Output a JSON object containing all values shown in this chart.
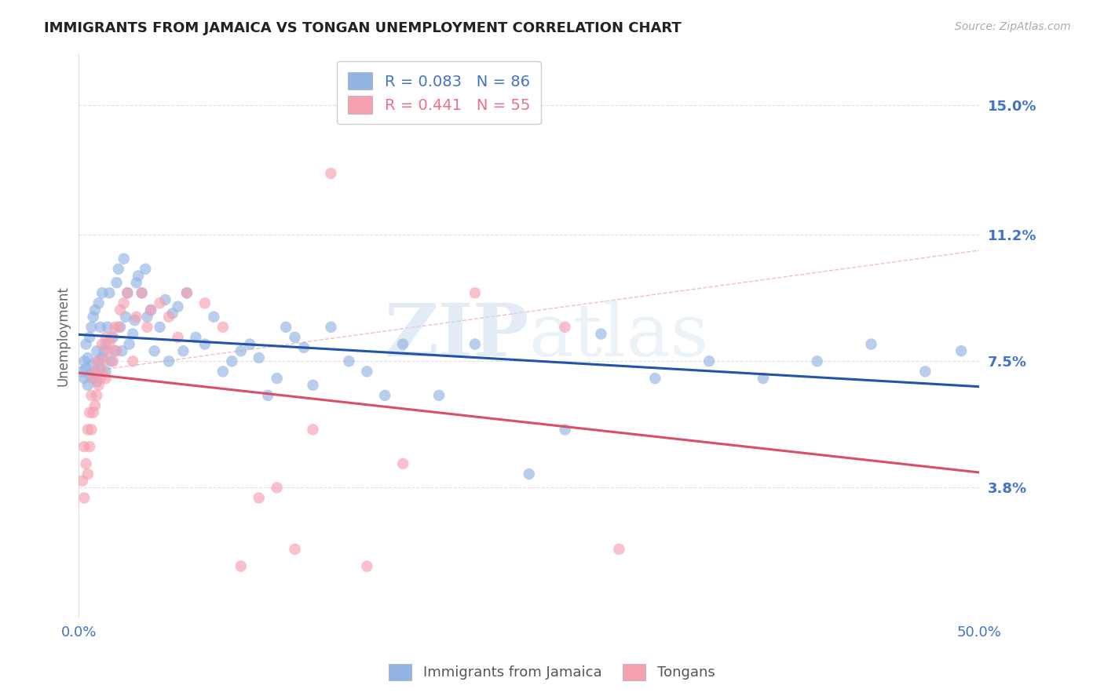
{
  "title": "IMMIGRANTS FROM JAMAICA VS TONGAN UNEMPLOYMENT CORRELATION CHART",
  "source": "Source: ZipAtlas.com",
  "ylabel": "Unemployment",
  "ytick_labels": [
    "3.8%",
    "7.5%",
    "11.2%",
    "15.0%"
  ],
  "ytick_values": [
    3.8,
    7.5,
    11.2,
    15.0
  ],
  "xlim": [
    0.0,
    50.0
  ],
  "ylim": [
    0.0,
    16.5
  ],
  "legend_label1": "Immigrants from Jamaica",
  "legend_label2": "Tongans",
  "color_blue": "#92b4e3",
  "color_pink": "#f5a0b0",
  "color_blue_text": "#4472c4",
  "color_pink_text": "#e8728a",
  "color_trendline_blue": "#2255aa",
  "color_trendline_pink": "#d94f6a",
  "color_dashed": "#e8b0bb",
  "watermark_zip": "ZIP",
  "watermark_atlas": "atlas",
  "jamaica_R": 0.083,
  "jamaica_N": 86,
  "tongan_R": 0.441,
  "tongan_N": 55,
  "background_color": "#ffffff",
  "grid_color": "#e0e0e0",
  "jamaica_x": [
    0.2,
    0.3,
    0.3,
    0.4,
    0.4,
    0.5,
    0.5,
    0.6,
    0.6,
    0.7,
    0.7,
    0.8,
    0.8,
    0.9,
    0.9,
    1.0,
    1.0,
    1.1,
    1.1,
    1.2,
    1.2,
    1.3,
    1.3,
    1.4,
    1.5,
    1.5,
    1.6,
    1.7,
    1.8,
    1.9,
    2.0,
    2.1,
    2.2,
    2.3,
    2.4,
    2.5,
    2.6,
    2.7,
    2.8,
    3.0,
    3.1,
    3.2,
    3.3,
    3.5,
    3.7,
    3.8,
    4.0,
    4.2,
    4.5,
    4.8,
    5.0,
    5.2,
    5.5,
    5.8,
    6.0,
    6.5,
    7.0,
    7.5,
    8.0,
    8.5,
    9.0,
    9.5,
    10.0,
    10.5,
    11.0,
    11.5,
    12.0,
    12.5,
    13.0,
    14.0,
    15.0,
    16.0,
    17.0,
    18.0,
    20.0,
    22.0,
    25.0,
    27.0,
    29.0,
    32.0,
    35.0,
    38.0,
    41.0,
    44.0,
    47.0,
    49.0
  ],
  "jamaica_y": [
    7.2,
    7.0,
    7.5,
    7.3,
    8.0,
    6.8,
    7.6,
    7.1,
    8.2,
    7.4,
    8.5,
    7.0,
    8.8,
    7.2,
    9.0,
    6.9,
    7.8,
    7.5,
    9.2,
    7.3,
    8.5,
    7.6,
    9.5,
    7.8,
    7.2,
    8.0,
    8.5,
    9.5,
    7.5,
    8.2,
    7.8,
    9.8,
    10.2,
    8.5,
    7.8,
    10.5,
    8.8,
    9.5,
    8.0,
    8.3,
    8.7,
    9.8,
    10.0,
    9.5,
    10.2,
    8.8,
    9.0,
    7.8,
    8.5,
    9.3,
    7.5,
    8.9,
    9.1,
    7.8,
    9.5,
    8.2,
    8.0,
    8.8,
    7.2,
    7.5,
    7.8,
    8.0,
    7.6,
    6.5,
    7.0,
    8.5,
    8.2,
    7.9,
    6.8,
    8.5,
    7.5,
    7.2,
    6.5,
    8.0,
    6.5,
    8.0,
    4.2,
    5.5,
    8.3,
    7.0,
    7.5,
    7.0,
    7.5,
    8.0,
    7.2,
    7.8
  ],
  "tongan_x": [
    0.2,
    0.3,
    0.3,
    0.4,
    0.5,
    0.5,
    0.6,
    0.6,
    0.7,
    0.7,
    0.8,
    0.8,
    0.9,
    0.9,
    1.0,
    1.0,
    1.1,
    1.2,
    1.3,
    1.3,
    1.4,
    1.5,
    1.5,
    1.6,
    1.7,
    1.8,
    1.9,
    2.0,
    2.1,
    2.2,
    2.3,
    2.5,
    2.7,
    3.0,
    3.2,
    3.5,
    3.8,
    4.0,
    4.5,
    5.0,
    5.5,
    6.0,
    7.0,
    8.0,
    9.0,
    10.0,
    11.0,
    12.0,
    13.0,
    14.0,
    16.0,
    18.0,
    22.0,
    27.0,
    30.0
  ],
  "tongan_y": [
    4.0,
    3.5,
    5.0,
    4.5,
    4.2,
    5.5,
    5.0,
    6.0,
    5.5,
    6.5,
    6.0,
    7.0,
    6.2,
    7.2,
    6.5,
    7.5,
    6.8,
    7.0,
    7.2,
    8.0,
    7.5,
    7.0,
    8.2,
    7.8,
    8.0,
    8.2,
    7.5,
    8.5,
    7.8,
    8.5,
    9.0,
    9.2,
    9.5,
    7.5,
    8.8,
    9.5,
    8.5,
    9.0,
    9.2,
    8.8,
    8.2,
    9.5,
    9.2,
    8.5,
    1.5,
    3.5,
    3.8,
    2.0,
    5.5,
    13.0,
    1.5,
    4.5,
    9.5,
    8.5,
    2.0
  ]
}
